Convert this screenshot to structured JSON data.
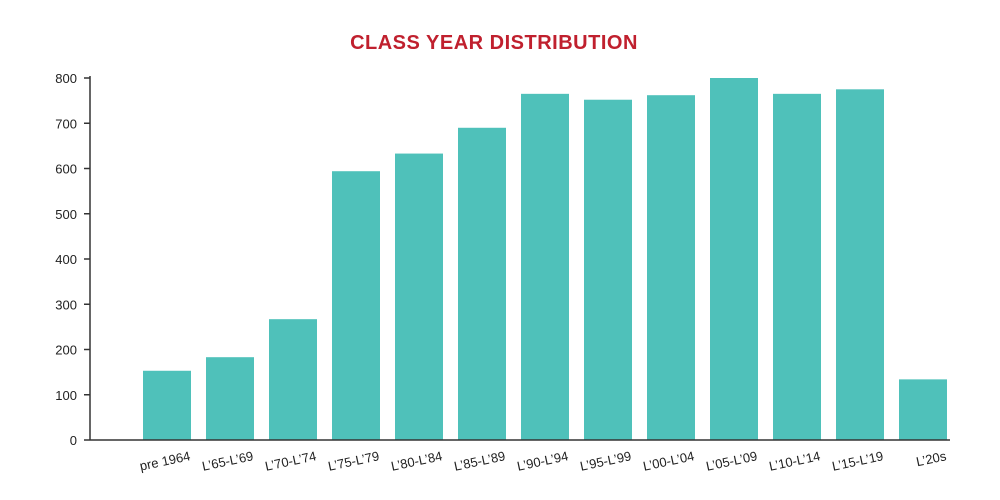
{
  "colors": {
    "bar": "#4fc1ba",
    "title": "#c0202e",
    "axis": "#333333"
  },
  "chart_data": {
    "type": "bar",
    "title": "CLASS YEAR DISTRIBUTION",
    "xlabel": "",
    "ylabel": "",
    "categories": [
      "pre 1964",
      "L’65-L’69",
      "L’70-L’74",
      "L’75-L’79",
      "L’80-L’84",
      "L’85-L’89",
      "L’90-L’94",
      "L’95-L’99",
      "L’00-L’04",
      "L’05-L’09",
      "L’10-L’14",
      "L’15-L’19",
      "L’20s"
    ],
    "values": [
      153,
      183,
      267,
      594,
      633,
      690,
      765,
      752,
      762,
      800,
      765,
      775,
      134
    ],
    "ylim": [
      0,
      800
    ],
    "yticks": [
      0,
      100,
      200,
      300,
      400,
      500,
      600,
      700,
      800
    ],
    "grid": false,
    "legend": "none"
  }
}
